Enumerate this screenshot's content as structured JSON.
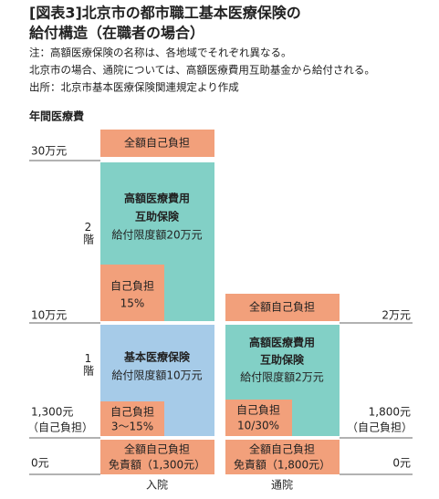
{
  "header": {
    "title_lines": [
      "[図表3]北京市の都市職工基本医療保険の",
      "給付構造（在職者の場合）"
    ],
    "notes": [
      "注：高額医療保険の名称は、各地域でそれぞれ異なる。",
      "北京市の場合、通院については、高額医療費用互助基金から給付される。",
      "出所：北京市基本医療保険関連規定より作成"
    ]
  },
  "axis_label": "年間医療費",
  "left_labels": {
    "top": "30万元",
    "mid": "10万元",
    "low": [
      "1,300元",
      "（自己負担）"
    ],
    "zero": "0元",
    "floors": [
      "2階",
      "1階"
    ]
  },
  "right_labels": {
    "mid": "2万元",
    "low": [
      "1,800元",
      "（自己負担）"
    ],
    "zero": "0元"
  },
  "inpatient": {
    "label": "入院",
    "top": "全額自己負担",
    "upper": [
      "高額医療費用",
      "互助保険",
      "給付限度額20万元"
    ],
    "upper_copay": [
      "自己負担",
      "15%"
    ],
    "basic": [
      "基本医療保険",
      "給付限度額10万元"
    ],
    "basic_copay": [
      "自己負担",
      "3～15%"
    ],
    "bottom": [
      "全額自己負担",
      "免責額（1,300元）"
    ]
  },
  "outpatient": {
    "label": "通院",
    "top": "全額自己負担",
    "upper": [
      "高額医療費用",
      "互助保険",
      "給付限度額2万元"
    ],
    "upper_copay": [
      "自己負担",
      "10/30%"
    ],
    "bottom": [
      "全額自己負担",
      "免責額（1,800元）"
    ]
  }
}
